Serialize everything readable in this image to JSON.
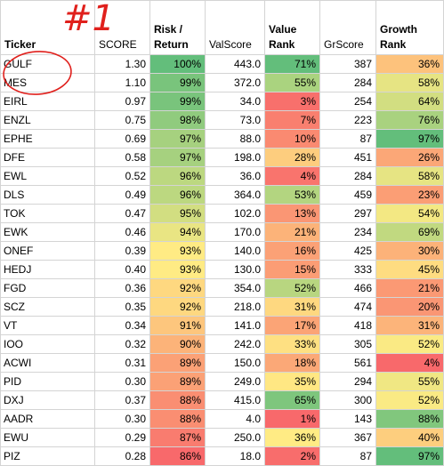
{
  "headers": {
    "ticker": "Ticker",
    "score": "SCORE",
    "risk_return": [
      "Risk /",
      "Return"
    ],
    "valscore": "ValScore",
    "value_rank": [
      "Value",
      "Rank"
    ],
    "grscore": "GrScore",
    "growth_rank": [
      "Growth",
      "Rank"
    ]
  },
  "annotation": {
    "text": "#1",
    "color": "#e0201c"
  },
  "colors": {
    "green": "#63be7b",
    "yellow": "#ffeb84",
    "red": "#f8696b"
  },
  "rows": [
    {
      "ticker": "GULF",
      "score": "1.30",
      "rr": "100%",
      "rr_v": 100,
      "val": "443.0",
      "vr": "71%",
      "vr_v": 71,
      "gr": "387",
      "grk": "36%",
      "grk_v": 36
    },
    {
      "ticker": "MES",
      "score": "1.10",
      "rr": "99%",
      "rr_v": 99,
      "val": "372.0",
      "vr": "55%",
      "vr_v": 55,
      "gr": "284",
      "grk": "58%",
      "grk_v": 58
    },
    {
      "ticker": "EIRL",
      "score": "0.97",
      "rr": "99%",
      "rr_v": 99,
      "val": "34.0",
      "vr": "3%",
      "vr_v": 3,
      "gr": "254",
      "grk": "64%",
      "grk_v": 64
    },
    {
      "ticker": "ENZL",
      "score": "0.75",
      "rr": "98%",
      "rr_v": 98,
      "val": "73.0",
      "vr": "7%",
      "vr_v": 7,
      "gr": "223",
      "grk": "76%",
      "grk_v": 76
    },
    {
      "ticker": "EPHE",
      "score": "0.69",
      "rr": "97%",
      "rr_v": 97,
      "val": "88.0",
      "vr": "10%",
      "vr_v": 10,
      "gr": "87",
      "grk": "97%",
      "grk_v": 97
    },
    {
      "ticker": "DFE",
      "score": "0.58",
      "rr": "97%",
      "rr_v": 97,
      "val": "198.0",
      "vr": "28%",
      "vr_v": 28,
      "gr": "451",
      "grk": "26%",
      "grk_v": 26
    },
    {
      "ticker": "EWL",
      "score": "0.52",
      "rr": "96%",
      "rr_v": 96,
      "val": "36.0",
      "vr": "4%",
      "vr_v": 4,
      "gr": "284",
      "grk": "58%",
      "grk_v": 58
    },
    {
      "ticker": "DLS",
      "score": "0.49",
      "rr": "96%",
      "rr_v": 96,
      "val": "364.0",
      "vr": "53%",
      "vr_v": 53,
      "gr": "459",
      "grk": "23%",
      "grk_v": 23
    },
    {
      "ticker": "TOK",
      "score": "0.47",
      "rr": "95%",
      "rr_v": 95,
      "val": "102.0",
      "vr": "13%",
      "vr_v": 13,
      "gr": "297",
      "grk": "54%",
      "grk_v": 54
    },
    {
      "ticker": "EWK",
      "score": "0.46",
      "rr": "94%",
      "rr_v": 94,
      "val": "170.0",
      "vr": "21%",
      "vr_v": 21,
      "gr": "234",
      "grk": "69%",
      "grk_v": 69
    },
    {
      "ticker": "ONEF",
      "score": "0.39",
      "rr": "93%",
      "rr_v": 93,
      "val": "140.0",
      "vr": "16%",
      "vr_v": 16,
      "gr": "425",
      "grk": "30%",
      "grk_v": 30
    },
    {
      "ticker": "HEDJ",
      "score": "0.40",
      "rr": "93%",
      "rr_v": 93,
      "val": "130.0",
      "vr": "15%",
      "vr_v": 15,
      "gr": "333",
      "grk": "45%",
      "grk_v": 45
    },
    {
      "ticker": "FGD",
      "score": "0.36",
      "rr": "92%",
      "rr_v": 92,
      "val": "354.0",
      "vr": "52%",
      "vr_v": 52,
      "gr": "466",
      "grk": "21%",
      "grk_v": 21
    },
    {
      "ticker": "SCZ",
      "score": "0.35",
      "rr": "92%",
      "rr_v": 92,
      "val": "218.0",
      "vr": "31%",
      "vr_v": 31,
      "gr": "474",
      "grk": "20%",
      "grk_v": 20
    },
    {
      "ticker": "VT",
      "score": "0.34",
      "rr": "91%",
      "rr_v": 91,
      "val": "141.0",
      "vr": "17%",
      "vr_v": 17,
      "gr": "418",
      "grk": "31%",
      "grk_v": 31
    },
    {
      "ticker": "IOO",
      "score": "0.32",
      "rr": "90%",
      "rr_v": 90,
      "val": "242.0",
      "vr": "33%",
      "vr_v": 33,
      "gr": "305",
      "grk": "52%",
      "grk_v": 52
    },
    {
      "ticker": "ACWI",
      "score": "0.31",
      "rr": "89%",
      "rr_v": 89,
      "val": "150.0",
      "vr": "18%",
      "vr_v": 18,
      "gr": "561",
      "grk": "4%",
      "grk_v": 4
    },
    {
      "ticker": "PID",
      "score": "0.30",
      "rr": "89%",
      "rr_v": 89,
      "val": "249.0",
      "vr": "35%",
      "vr_v": 35,
      "gr": "294",
      "grk": "55%",
      "grk_v": 55
    },
    {
      "ticker": "DXJ",
      "score": "0.37",
      "rr": "88%",
      "rr_v": 88,
      "val": "415.0",
      "vr": "65%",
      "vr_v": 65,
      "gr": "300",
      "grk": "52%",
      "grk_v": 52
    },
    {
      "ticker": "AADR",
      "score": "0.30",
      "rr": "88%",
      "rr_v": 88,
      "val": "4.0",
      "vr": "1%",
      "vr_v": 1,
      "gr": "143",
      "grk": "88%",
      "grk_v": 88
    },
    {
      "ticker": "EWU",
      "score": "0.29",
      "rr": "87%",
      "rr_v": 87,
      "val": "250.0",
      "vr": "36%",
      "vr_v": 36,
      "gr": "367",
      "grk": "40%",
      "grk_v": 40
    },
    {
      "ticker": "PIZ",
      "score": "0.28",
      "rr": "86%",
      "rr_v": 86,
      "val": "18.0",
      "vr": "2%",
      "vr_v": 2,
      "gr": "87",
      "grk": "97%",
      "grk_v": 97
    }
  ]
}
